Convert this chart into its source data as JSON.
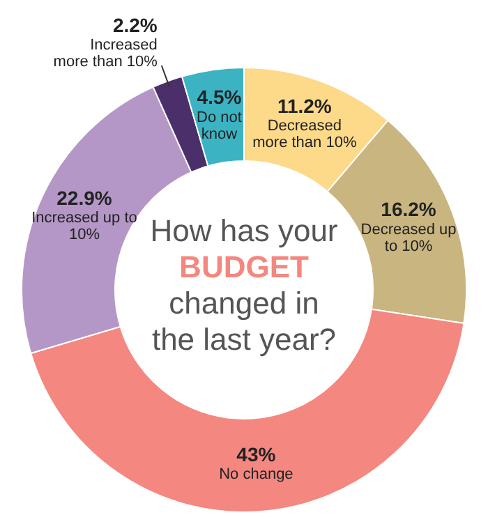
{
  "chart_data": {
    "type": "donut",
    "title": "How has your BUDGET changed in the last year?",
    "categories": [
      "Decreased more than 10%",
      "Decreased up to 10%",
      "No change",
      "Increased up to 10%",
      "Increased more than 10%",
      "Do not know"
    ],
    "values": [
      11.2,
      16.2,
      43,
      22.9,
      2.2,
      4.5
    ],
    "colors": [
      "#fdd98a",
      "#c9b57f",
      "#f4877f",
      "#b497c6",
      "#4a2f6b",
      "#3bb3c3"
    ],
    "value_labels": [
      "11.2%",
      "16.2%",
      "43%",
      "22.9%",
      "2.2%",
      "4.5%"
    ]
  }
}
